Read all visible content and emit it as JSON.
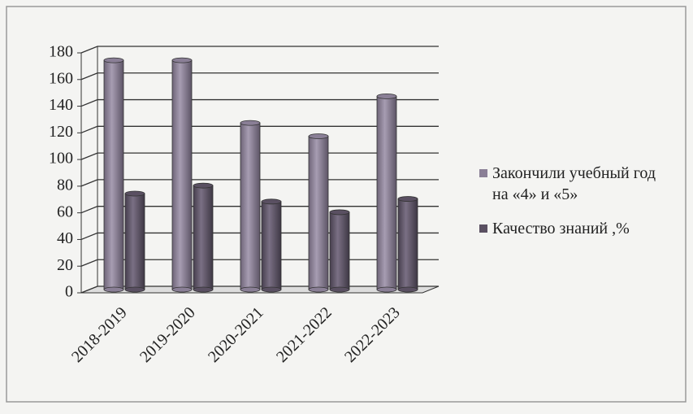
{
  "chart_data": {
    "type": "bar",
    "categories": [
      "2018-2019",
      "2019-2020",
      "2020-2021",
      "2021-2022",
      "2022-2023"
    ],
    "series": [
      {
        "name": "Закончили учебный год на «4» и «5»",
        "color": "#8a7f96",
        "values": [
          172,
          172,
          125,
          115,
          145
        ]
      },
      {
        "name": "Качество знаний ,%",
        "color": "#5a5062",
        "values": [
          72,
          78,
          66,
          58,
          68
        ]
      }
    ],
    "ylim": [
      0,
      180
    ],
    "yticks": [
      0,
      20,
      40,
      60,
      80,
      100,
      120,
      140,
      160,
      180
    ],
    "grid": true,
    "legend": "right"
  }
}
